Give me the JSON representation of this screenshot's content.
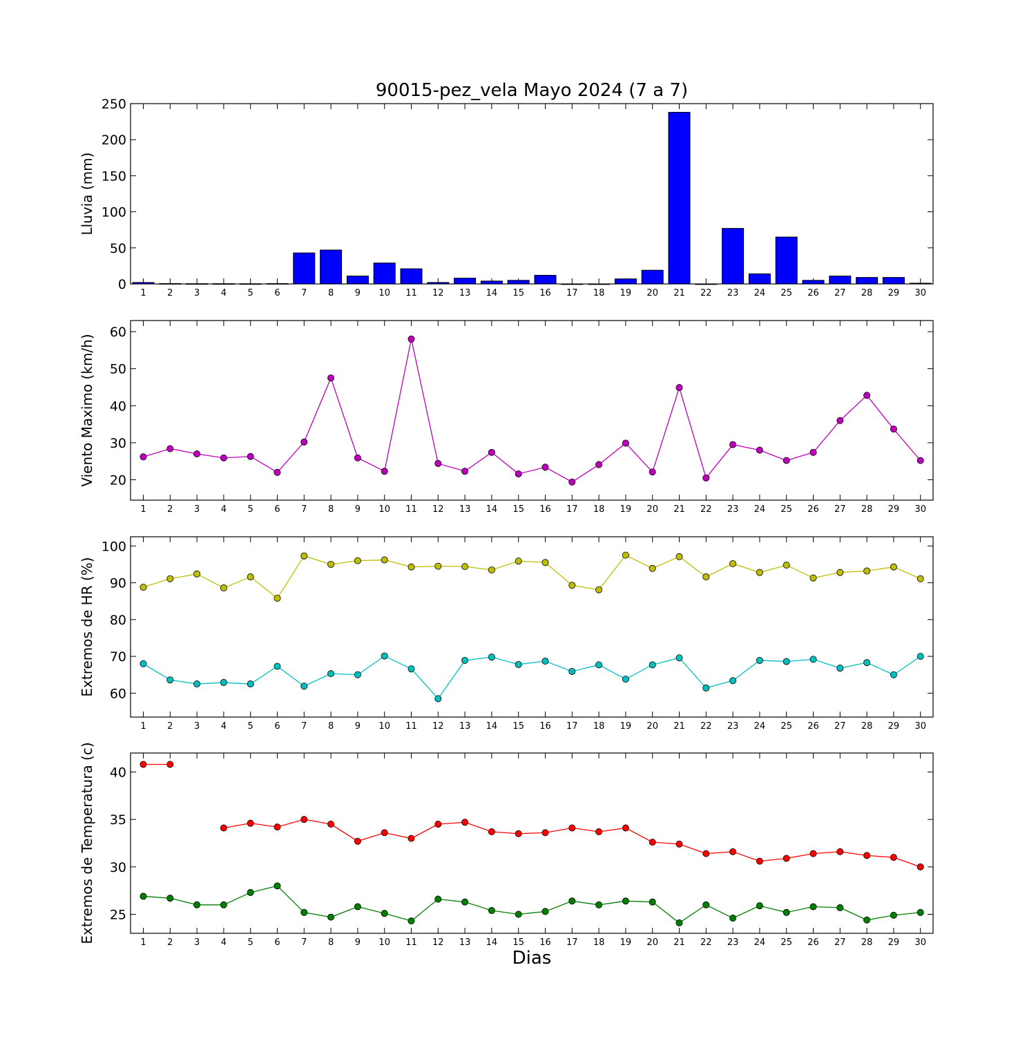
{
  "title": "90015-pez_vela Mayo 2024  (7 a 7)",
  "xlabel": "Dias",
  "colors": {
    "rain": "#0000ff",
    "wind": "#bf00bf",
    "hr_max": "#bfbf00",
    "hr_min": "#00bfbf",
    "temp_max": "#ff0000",
    "temp_min": "#008000"
  },
  "chart_data": [
    {
      "type": "bar",
      "ylabel": "Lluvia (mm)",
      "ylim": [
        0,
        250
      ],
      "yticks": [
        0,
        50,
        100,
        150,
        200,
        250
      ],
      "categories": [
        1,
        2,
        3,
        4,
        5,
        6,
        7,
        8,
        9,
        10,
        11,
        12,
        13,
        14,
        15,
        16,
        17,
        18,
        19,
        20,
        21,
        22,
        23,
        24,
        25,
        26,
        27,
        28,
        29,
        30
      ],
      "series": [
        {
          "values": [
            2,
            0.5,
            0.3,
            0.3,
            0.2,
            0.5,
            43,
            47,
            11,
            29,
            21,
            2,
            8,
            4,
            5,
            12,
            0,
            0,
            7,
            19,
            238,
            0,
            77,
            14,
            65,
            5,
            11,
            9,
            9,
            1
          ],
          "color": "#0000ff"
        }
      ]
    },
    {
      "type": "line",
      "ylabel": "Viento Maximo (km/h)",
      "ylim": [
        14.5,
        63
      ],
      "yticks": [
        20,
        30,
        40,
        50,
        60
      ],
      "x": [
        1,
        2,
        3,
        4,
        5,
        6,
        7,
        8,
        9,
        10,
        11,
        12,
        13,
        14,
        15,
        16,
        17,
        18,
        19,
        20,
        21,
        22,
        23,
        24,
        25,
        26,
        27,
        28,
        29,
        30
      ],
      "series": [
        {
          "values": [
            26.2,
            28.4,
            27.0,
            25.9,
            26.3,
            22.0,
            30.2,
            47.5,
            25.9,
            22.3,
            58.0,
            24.4,
            22.3,
            27.4,
            21.6,
            23.4,
            19.4,
            24.1,
            29.9,
            22.1,
            44.9,
            20.5,
            29.5,
            28.0,
            25.2,
            27.4,
            36.0,
            42.8,
            33.7,
            25.2
          ],
          "color": "#bf00bf"
        }
      ]
    },
    {
      "type": "line",
      "ylabel": "Extremos de HR (%)",
      "ylim": [
        53.5,
        102.5
      ],
      "yticks": [
        60,
        70,
        80,
        90,
        100
      ],
      "x": [
        1,
        2,
        3,
        4,
        5,
        6,
        7,
        8,
        9,
        10,
        11,
        12,
        13,
        14,
        15,
        16,
        17,
        18,
        19,
        20,
        21,
        22,
        23,
        24,
        25,
        26,
        27,
        28,
        29,
        30
      ],
      "series": [
        {
          "values": [
            88.8,
            91.1,
            92.4,
            88.6,
            91.6,
            85.8,
            97.3,
            95.0,
            96.0,
            96.2,
            94.3,
            94.5,
            94.4,
            93.5,
            95.9,
            95.5,
            89.3,
            88.1,
            97.5,
            93.9,
            97.1,
            91.6,
            95.2,
            92.8,
            94.8,
            91.3,
            92.8,
            93.2,
            94.3,
            91.1
          ],
          "color": "#bfbf00"
        },
        {
          "values": [
            68.0,
            63.6,
            62.5,
            62.9,
            62.5,
            67.3,
            61.9,
            65.3,
            65.0,
            70.1,
            66.6,
            58.5,
            68.9,
            69.8,
            67.8,
            68.7,
            65.9,
            67.7,
            63.8,
            67.7,
            69.6,
            61.4,
            63.4,
            68.9,
            68.6,
            69.2,
            66.8,
            68.3,
            65.0,
            70.0
          ],
          "color": "#00bfbf"
        }
      ]
    },
    {
      "type": "line",
      "ylabel": "Extremos de Temperatura (c)",
      "ylim": [
        23,
        42
      ],
      "yticks": [
        25,
        30,
        35,
        40
      ],
      "x": [
        1,
        2,
        3,
        4,
        5,
        6,
        7,
        8,
        9,
        10,
        11,
        12,
        13,
        14,
        15,
        16,
        17,
        18,
        19,
        20,
        21,
        22,
        23,
        24,
        25,
        26,
        27,
        28,
        29,
        30
      ],
      "series": [
        {
          "values": [
            40.8,
            40.8,
            null,
            34.1,
            34.6,
            34.2,
            35.0,
            34.5,
            32.7,
            33.6,
            33.0,
            34.5,
            34.7,
            33.7,
            33.5,
            33.6,
            34.1,
            33.7,
            34.1,
            32.6,
            32.4,
            31.4,
            31.6,
            30.6,
            30.9,
            31.4,
            31.6,
            31.2,
            31.0,
            30.0
          ],
          "color": "#ff0000"
        },
        {
          "values": [
            26.9,
            26.7,
            26.0,
            26.0,
            27.3,
            28.0,
            25.2,
            24.7,
            25.8,
            25.1,
            24.3,
            26.6,
            26.3,
            25.4,
            25.0,
            25.3,
            26.4,
            26.0,
            26.4,
            26.3,
            24.1,
            26.0,
            24.6,
            25.9,
            25.2,
            25.8,
            25.7,
            24.4,
            24.9,
            25.2
          ],
          "color": "#008000"
        }
      ]
    }
  ]
}
